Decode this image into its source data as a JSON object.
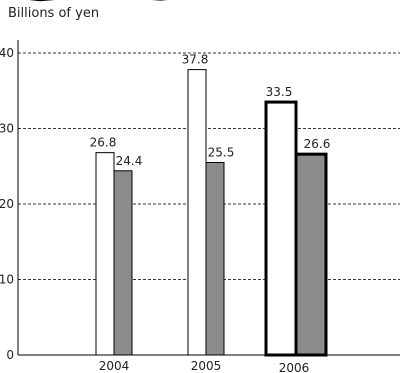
{
  "chart_data": {
    "type": "bar",
    "unit_label": "Billions of yen",
    "title": "",
    "xlabel": "",
    "ylabel": "",
    "categories": [
      "2004",
      "2005",
      "2006"
    ],
    "series": [
      {
        "values": [
          26.8,
          37.8,
          33.5
        ],
        "color": "#ffffff"
      },
      {
        "values": [
          24.4,
          25.5,
          26.6
        ],
        "color": "#8c8c8c"
      }
    ],
    "ylim": [
      0,
      40
    ],
    "yticks": [
      "0",
      "10",
      "20",
      "30",
      "40"
    ],
    "grid": true,
    "highlight_category": "2006"
  }
}
